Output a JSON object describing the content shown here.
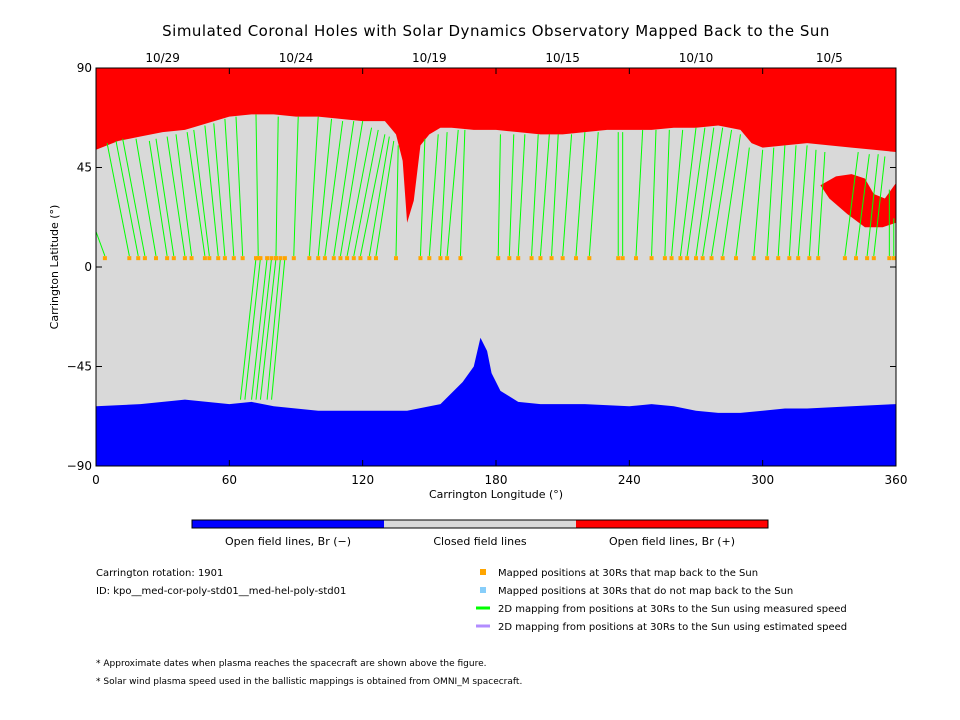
{
  "chart_data": {
    "type": "map",
    "title": "Simulated Coronal Holes with Solar Dynamics Observatory Mapped Back to the Sun",
    "xlabel": "Carrington Longitude (°)",
    "ylabel": "Carrington Latitude (°)",
    "xlim": [
      0,
      360
    ],
    "ylim": [
      -90,
      90
    ],
    "x_ticks": [
      "0",
      "60",
      "120",
      "180",
      "240",
      "300",
      "360"
    ],
    "y_ticks": [
      "90",
      "45",
      "0",
      "−45",
      "−90"
    ],
    "top_axis_dates": [
      {
        "label": "10/29",
        "lon": 30
      },
      {
        "label": "10/24",
        "lon": 90
      },
      {
        "label": "10/19",
        "lon": 150
      },
      {
        "label": "10/15",
        "lon": 210
      },
      {
        "label": "10/10",
        "lon": 270
      },
      {
        "label": "10/5",
        "lon": 330
      }
    ],
    "colorbar": {
      "labels": [
        "Open field lines, Br (−)",
        "Closed field lines",
        "Open field lines, Br (+)"
      ],
      "colors": [
        "#0000ff",
        "#d9d9d9",
        "#ff0000"
      ]
    },
    "regions": {
      "north_boundary": [
        [
          0,
          53
        ],
        [
          10,
          57
        ],
        [
          20,
          59
        ],
        [
          30,
          61
        ],
        [
          40,
          62
        ],
        [
          50,
          65
        ],
        [
          60,
          68
        ],
        [
          70,
          69
        ],
        [
          80,
          69
        ],
        [
          90,
          68
        ],
        [
          100,
          68
        ],
        [
          110,
          67
        ],
        [
          120,
          66
        ],
        [
          130,
          66
        ],
        [
          135,
          60
        ],
        [
          138,
          48
        ],
        [
          140,
          20
        ],
        [
          143,
          30
        ],
        [
          146,
          55
        ],
        [
          150,
          60
        ],
        [
          155,
          63
        ],
        [
          160,
          63
        ],
        [
          170,
          62
        ],
        [
          180,
          62
        ],
        [
          190,
          61
        ],
        [
          200,
          60
        ],
        [
          210,
          60
        ],
        [
          220,
          61
        ],
        [
          230,
          62
        ],
        [
          240,
          62
        ],
        [
          250,
          62
        ],
        [
          260,
          63
        ],
        [
          270,
          63
        ],
        [
          280,
          64
        ],
        [
          290,
          62
        ],
        [
          295,
          56
        ],
        [
          300,
          54
        ],
        [
          310,
          55
        ],
        [
          320,
          56
        ],
        [
          330,
          55
        ],
        [
          340,
          54
        ],
        [
          350,
          53
        ],
        [
          360,
          52
        ]
      ],
      "north_patch": [
        [
          326,
          37
        ],
        [
          333,
          41
        ],
        [
          340,
          42
        ],
        [
          346,
          40
        ],
        [
          350,
          33
        ],
        [
          355,
          31
        ],
        [
          360,
          38
        ],
        [
          360,
          20
        ],
        [
          354,
          18
        ],
        [
          346,
          18
        ],
        [
          338,
          24
        ],
        [
          330,
          31
        ]
      ],
      "south_boundary": [
        [
          0,
          -63
        ],
        [
          20,
          -62
        ],
        [
          40,
          -60
        ],
        [
          50,
          -61
        ],
        [
          60,
          -62
        ],
        [
          70,
          -61
        ],
        [
          80,
          -63
        ],
        [
          90,
          -64
        ],
        [
          100,
          -65
        ],
        [
          120,
          -65
        ],
        [
          140,
          -65
        ],
        [
          155,
          -62
        ],
        [
          165,
          -52
        ],
        [
          170,
          -45
        ],
        [
          173,
          -32
        ],
        [
          176,
          -38
        ],
        [
          178,
          -48
        ],
        [
          182,
          -56
        ],
        [
          190,
          -61
        ],
        [
          200,
          -62
        ],
        [
          220,
          -62
        ],
        [
          240,
          -63
        ],
        [
          250,
          -62
        ],
        [
          260,
          -63
        ],
        [
          270,
          -65
        ],
        [
          280,
          -66
        ],
        [
          290,
          -66
        ],
        [
          300,
          -65
        ],
        [
          310,
          -64
        ],
        [
          320,
          -64
        ],
        [
          340,
          -63
        ],
        [
          360,
          -62
        ]
      ]
    },
    "mapped_positions_lat": 4,
    "mapping_lines": [
      {
        "x0": 0,
        "y0": 16,
        "x1": 4,
        "y1": 5
      },
      {
        "x0": 5,
        "y0": 56,
        "x1": 15,
        "y1": 5
      },
      {
        "x0": 9,
        "y0": 57,
        "x1": 19,
        "y1": 5
      },
      {
        "x0": 12,
        "y0": 58,
        "x1": 22,
        "y1": 5
      },
      {
        "x0": 18,
        "y0": 58,
        "x1": 27,
        "y1": 5
      },
      {
        "x0": 24,
        "y0": 57,
        "x1": 32,
        "y1": 5
      },
      {
        "x0": 27,
        "y0": 58,
        "x1": 35,
        "y1": 5
      },
      {
        "x0": 32,
        "y0": 59,
        "x1": 40,
        "y1": 5
      },
      {
        "x0": 36,
        "y0": 60,
        "x1": 43,
        "y1": 5
      },
      {
        "x0": 41,
        "y0": 61,
        "x1": 49,
        "y1": 5
      },
      {
        "x0": 44,
        "y0": 62,
        "x1": 51,
        "y1": 5
      },
      {
        "x0": 49,
        "y0": 64,
        "x1": 55,
        "y1": 5
      },
      {
        "x0": 53,
        "y0": 65,
        "x1": 58,
        "y1": 5
      },
      {
        "x0": 58,
        "y0": 67,
        "x1": 62,
        "y1": 5
      },
      {
        "x0": 63,
        "y0": 68,
        "x1": 66,
        "y1": 5
      },
      {
        "x0": 72,
        "y0": 69,
        "x1": 73,
        "y1": 5
      },
      {
        "x0": 82,
        "y0": 68,
        "x1": 81,
        "y1": 5
      },
      {
        "x0": 91,
        "y0": 68,
        "x1": 89,
        "y1": 5
      },
      {
        "x0": 100,
        "y0": 68,
        "x1": 96,
        "y1": 5
      },
      {
        "x0": 106,
        "y0": 67,
        "x1": 100,
        "y1": 5
      },
      {
        "x0": 111,
        "y0": 66,
        "x1": 103,
        "y1": 5
      },
      {
        "x0": 116,
        "y0": 66,
        "x1": 107,
        "y1": 5
      },
      {
        "x0": 120,
        "y0": 66,
        "x1": 110,
        "y1": 5
      },
      {
        "x0": 124,
        "y0": 63,
        "x1": 113,
        "y1": 5
      },
      {
        "x0": 127,
        "y0": 62,
        "x1": 116,
        "y1": 5
      },
      {
        "x0": 130,
        "y0": 60,
        "x1": 119,
        "y1": 5
      },
      {
        "x0": 132,
        "y0": 59,
        "x1": 123,
        "y1": 5
      },
      {
        "x0": 134,
        "y0": 57,
        "x1": 126,
        "y1": 5
      },
      {
        "x0": 136,
        "y0": 55,
        "x1": 135,
        "y1": 5
      },
      {
        "x0": 148,
        "y0": 58,
        "x1": 146,
        "y1": 5
      },
      {
        "x0": 154,
        "y0": 60,
        "x1": 150,
        "y1": 5
      },
      {
        "x0": 158,
        "y0": 61,
        "x1": 155,
        "y1": 5
      },
      {
        "x0": 163,
        "y0": 62,
        "x1": 158,
        "y1": 5
      },
      {
        "x0": 166,
        "y0": 62,
        "x1": 164,
        "y1": 5
      },
      {
        "x0": 182,
        "y0": 60,
        "x1": 181,
        "y1": 5
      },
      {
        "x0": 188,
        "y0": 60,
        "x1": 186,
        "y1": 5
      },
      {
        "x0": 193,
        "y0": 60,
        "x1": 190,
        "y1": 5
      },
      {
        "x0": 199,
        "y0": 60,
        "x1": 196,
        "y1": 5
      },
      {
        "x0": 204,
        "y0": 60,
        "x1": 200,
        "y1": 5
      },
      {
        "x0": 208,
        "y0": 60,
        "x1": 205,
        "y1": 5
      },
      {
        "x0": 214,
        "y0": 60,
        "x1": 210,
        "y1": 5
      },
      {
        "x0": 220,
        "y0": 61,
        "x1": 216,
        "y1": 5
      },
      {
        "x0": 226,
        "y0": 61,
        "x1": 222,
        "y1": 5
      },
      {
        "x0": 235,
        "y0": 61,
        "x1": 235,
        "y1": 5
      },
      {
        "x0": 237,
        "y0": 61,
        "x1": 237,
        "y1": 5
      },
      {
        "x0": 246,
        "y0": 62,
        "x1": 243,
        "y1": 5
      },
      {
        "x0": 252,
        "y0": 62,
        "x1": 250,
        "y1": 5
      },
      {
        "x0": 258,
        "y0": 62,
        "x1": 256,
        "y1": 5
      },
      {
        "x0": 264,
        "y0": 62,
        "x1": 259,
        "y1": 5
      },
      {
        "x0": 270,
        "y0": 63,
        "x1": 263,
        "y1": 5
      },
      {
        "x0": 274,
        "y0": 63,
        "x1": 266,
        "y1": 5
      },
      {
        "x0": 278,
        "y0": 63,
        "x1": 270,
        "y1": 5
      },
      {
        "x0": 282,
        "y0": 63,
        "x1": 273,
        "y1": 5
      },
      {
        "x0": 286,
        "y0": 62,
        "x1": 277,
        "y1": 5
      },
      {
        "x0": 290,
        "y0": 60,
        "x1": 282,
        "y1": 5
      },
      {
        "x0": 294,
        "y0": 54,
        "x1": 288,
        "y1": 5
      },
      {
        "x0": 300,
        "y0": 53,
        "x1": 296,
        "y1": 5
      },
      {
        "x0": 305,
        "y0": 54,
        "x1": 302,
        "y1": 5
      },
      {
        "x0": 310,
        "y0": 55,
        "x1": 307,
        "y1": 5
      },
      {
        "x0": 315,
        "y0": 55,
        "x1": 312,
        "y1": 5
      },
      {
        "x0": 320,
        "y0": 55,
        "x1": 316,
        "y1": 5
      },
      {
        "x0": 324,
        "y0": 53,
        "x1": 321,
        "y1": 5
      },
      {
        "x0": 328,
        "y0": 52,
        "x1": 325,
        "y1": 5
      },
      {
        "x0": 343,
        "y0": 52,
        "x1": 337,
        "y1": 5
      },
      {
        "x0": 348,
        "y0": 51,
        "x1": 342,
        "y1": 5
      },
      {
        "x0": 352,
        "y0": 51,
        "x1": 347,
        "y1": 5
      },
      {
        "x0": 355,
        "y0": 50,
        "x1": 350,
        "y1": 5
      },
      {
        "x0": 357,
        "y0": 35,
        "x1": 357,
        "y1": 5
      },
      {
        "x0": 359,
        "y0": 22,
        "x1": 359,
        "y1": 5
      },
      {
        "x0": 65,
        "y0": -60,
        "x1": 72,
        "y1": 4
      },
      {
        "x0": 67,
        "y0": -60,
        "x1": 74,
        "y1": 4
      },
      {
        "x0": 70,
        "y0": -60,
        "x1": 77,
        "y1": 4
      },
      {
        "x0": 72,
        "y0": -60,
        "x1": 79,
        "y1": 4
      },
      {
        "x0": 74,
        "y0": -60,
        "x1": 81,
        "y1": 4
      },
      {
        "x0": 77,
        "y0": -60,
        "x1": 83,
        "y1": 4
      },
      {
        "x0": 79,
        "y0": -60,
        "x1": 85,
        "y1": 4
      }
    ]
  },
  "legend": {
    "info": [
      "Carrington rotation: 1901",
      "ID: kpo__med-cor-poly-std01__med-hel-poly-std01"
    ],
    "items": [
      {
        "label": "Mapped positions at 30Rs that map back to the Sun",
        "color": "#ffa500",
        "kind": "square"
      },
      {
        "label": "Mapped positions at 30Rs that do not map back to the Sun",
        "color": "#87cefa",
        "kind": "square"
      },
      {
        "label": "2D mapping from positions at 30Rs to the Sun using measured speed",
        "color": "#00ff00",
        "kind": "line"
      },
      {
        "label": "2D mapping from positions at 30Rs to the Sun using estimated speed",
        "color": "#b28cff",
        "kind": "line"
      }
    ]
  },
  "notes": [
    "* Approximate dates when plasma reaches the spacecraft are shown above the figure.",
    "* Solar wind plasma speed used in the ballistic mappings is obtained from OMNI_M spacecraft."
  ]
}
